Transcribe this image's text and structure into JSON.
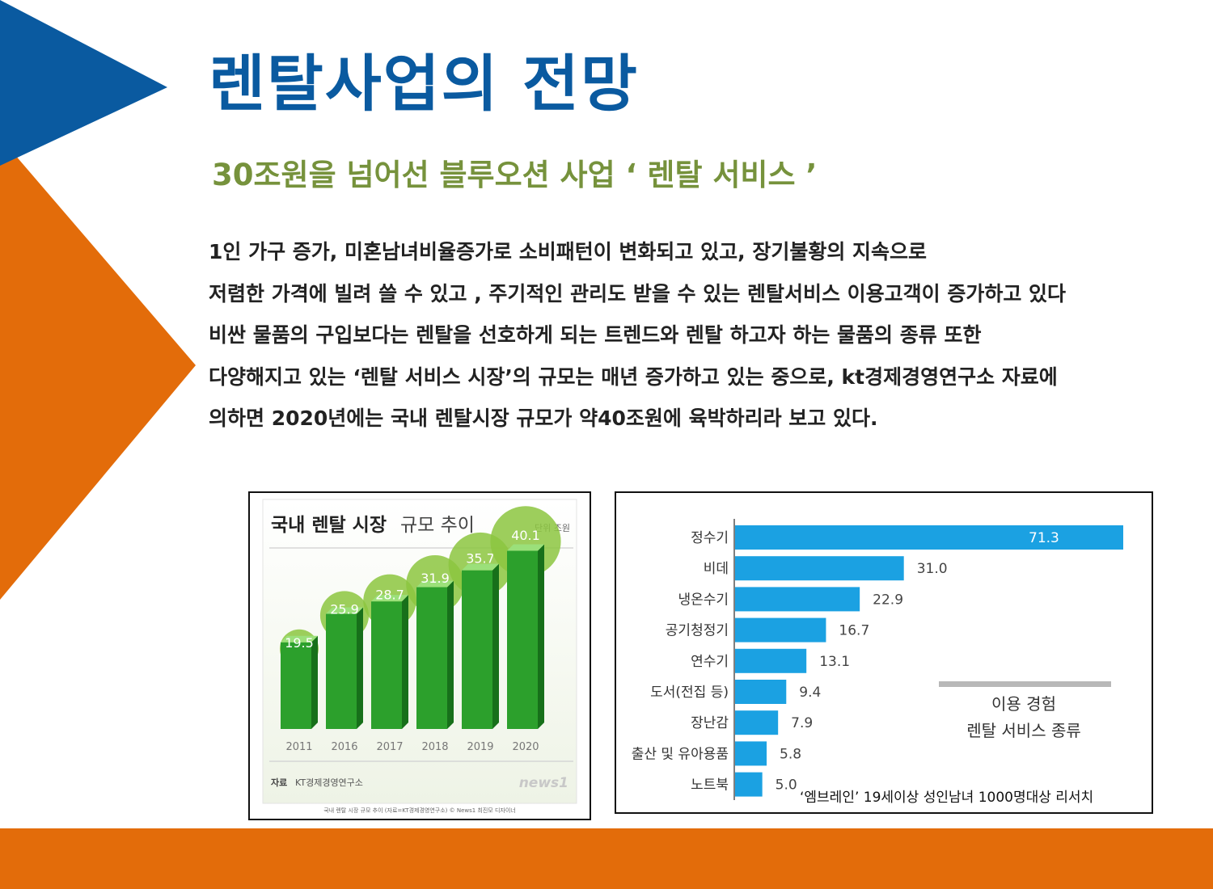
{
  "page": {
    "title": "렌탈사업의 전망",
    "subtitle": "30조원을 넘어선 블루오션 사업 ‘ 렌탈 서비스 ’",
    "paragraph": [
      "1인 가구 증가, 미혼남녀비율증가로 소비패턴이 변화되고 있고, 장기불황의 지속으로",
      "저렴한 가격에 빌려 쓸 수 있고 , 주기적인 관리도 받을 수 있는 렌탈서비스 이용고객이 증가하고 있다",
      "비싼 물품의 구입보다는 렌탈을 선호하게 되는 트렌드와 렌탈 하고자 하는 물품의 종류 또한",
      "다양해지고 있는 ‘렌탈 서비스 시장’의 규모는  매년 증가하고 있는 중으로, kt경제경영연구소 자료에",
      "의하면 2020년에는 국내 렌탈시장 규모가 약40조원에 육박하리라 보고 있다."
    ],
    "research_note": "‘엠브레인’ 19세이상 성인남녀 1000명대상 리서치"
  },
  "colors": {
    "title_blue": "#0a5aa0",
    "subtitle_green": "#76923c",
    "accent_orange": "#e36c0a",
    "bar_green": "#2ca02c",
    "bubble_green": "#8cc63f",
    "bar_blue": "#1ba1e2"
  },
  "chart_data": [
    {
      "type": "bar",
      "title_bold": "국내 렌탈 시장",
      "title_light": "규모 추이",
      "unit": "단위  조원",
      "categories": [
        "2011",
        "2016",
        "2017",
        "2018",
        "2019",
        "2020"
      ],
      "values": [
        19.5,
        25.9,
        28.7,
        31.9,
        35.7,
        40.1
      ],
      "source_label": "자료",
      "source": "KT경제경영연구소",
      "logo": "news1",
      "credit": "국내 렌탈 시장 규모 추이 (자료=KT경제경영연구소) © News1 최진모 디자이너"
    },
    {
      "type": "bar",
      "orientation": "horizontal",
      "categories": [
        "정수기",
        "비데",
        "냉온수기",
        "공기청정기",
        "연수기",
        "도서(전집 등)",
        "장난감",
        "출산 및 유아용품",
        "노트북"
      ],
      "values": [
        71.3,
        31.0,
        22.9,
        16.7,
        13.1,
        9.4,
        7.9,
        5.8,
        5.0
      ],
      "value_labels": [
        "71.3",
        "31.0",
        "22.9",
        "16.7",
        "13.1",
        "9.4",
        "7.9",
        "5.8",
        "5.0"
      ],
      "legend_line1": "이용 경험",
      "legend_line2": "렌탈 서비스 종류"
    }
  ]
}
